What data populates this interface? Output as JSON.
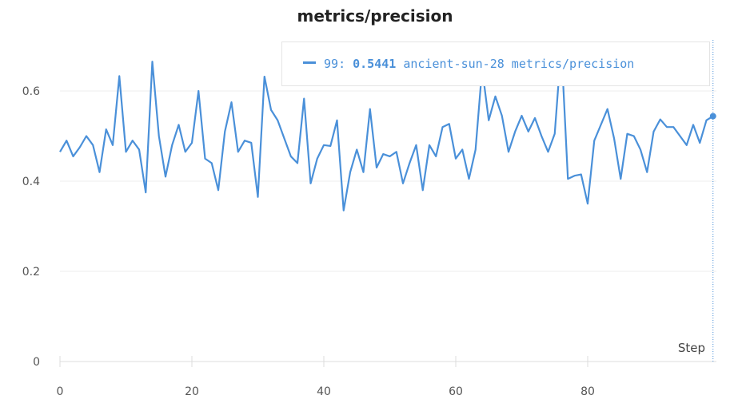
{
  "chart_data": {
    "type": "line",
    "title": "metrics/precision",
    "xlabel": "Step",
    "ylabel": "",
    "xlim": [
      0,
      99
    ],
    "ylim": [
      0,
      0.7
    ],
    "xticks": [
      "0",
      "20",
      "40",
      "60",
      "80"
    ],
    "yticks": [
      "0",
      "0.2",
      "0.4",
      "0.6"
    ],
    "grid": true,
    "legend_position": "top-right",
    "color": "#4a90d9",
    "series": [
      {
        "name": "ancient-sun-28 metrics/precision",
        "x": [
          0,
          1,
          2,
          3,
          4,
          5,
          6,
          7,
          8,
          9,
          10,
          11,
          12,
          13,
          14,
          15,
          16,
          17,
          18,
          19,
          20,
          21,
          22,
          23,
          24,
          25,
          26,
          27,
          28,
          29,
          30,
          31,
          32,
          33,
          34,
          35,
          36,
          37,
          38,
          39,
          40,
          41,
          42,
          43,
          44,
          45,
          46,
          47,
          48,
          49,
          50,
          51,
          52,
          53,
          54,
          55,
          56,
          57,
          58,
          59,
          60,
          61,
          62,
          63,
          64,
          65,
          66,
          67,
          68,
          69,
          70,
          71,
          72,
          73,
          74,
          75,
          76,
          77,
          78,
          79,
          80,
          81,
          82,
          83,
          84,
          85,
          86,
          87,
          88,
          89,
          90,
          91,
          92,
          93,
          94,
          95,
          96,
          97,
          98,
          99
        ],
        "values": [
          0.465,
          0.49,
          0.455,
          0.475,
          0.5,
          0.48,
          0.42,
          0.515,
          0.48,
          0.633,
          0.465,
          0.49,
          0.47,
          0.375,
          0.665,
          0.5,
          0.41,
          0.48,
          0.525,
          0.465,
          0.485,
          0.6,
          0.45,
          0.44,
          0.38,
          0.51,
          0.575,
          0.465,
          0.49,
          0.485,
          0.365,
          0.632,
          0.558,
          0.535,
          0.495,
          0.455,
          0.44,
          0.583,
          0.395,
          0.45,
          0.48,
          0.478,
          0.535,
          0.335,
          0.42,
          0.47,
          0.42,
          0.56,
          0.43,
          0.46,
          0.455,
          0.465,
          0.395,
          0.44,
          0.48,
          0.38,
          0.48,
          0.455,
          0.52,
          0.527,
          0.45,
          0.47,
          0.405,
          0.47,
          0.65,
          0.535,
          0.588,
          0.545,
          0.465,
          0.51,
          0.545,
          0.51,
          0.54,
          0.5,
          0.465,
          0.505,
          0.7,
          0.405,
          0.412,
          0.415,
          0.35,
          0.49,
          0.525,
          0.56,
          0.495,
          0.405,
          0.505,
          0.5,
          0.47,
          0.42,
          0.51,
          0.537,
          0.52,
          0.52,
          0.5,
          0.48,
          0.525,
          0.485,
          0.535,
          0.5441
        ]
      }
    ],
    "hover": {
      "step": "99",
      "value": "0.5441",
      "series_name": "ancient-sun-28 metrics/precision"
    }
  }
}
